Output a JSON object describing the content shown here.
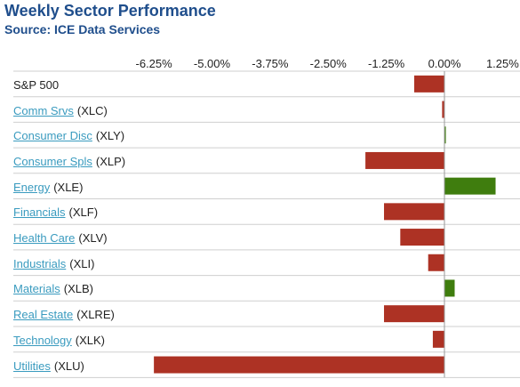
{
  "title": "Weekly Sector Performance",
  "subtitle": "Source: ICE Data Services",
  "chart_data": {
    "type": "bar",
    "orientation": "horizontal",
    "title": "Weekly Sector Performance",
    "xlim": [
      -6.95,
      1.45
    ],
    "ticks": [
      -6.25,
      -5.0,
      -3.75,
      -2.5,
      -1.25,
      0.0,
      1.25
    ],
    "tick_labels": [
      "-6.25%",
      "-5.00%",
      "-3.75%",
      "-2.50%",
      "-1.25%",
      "0.00%",
      "1.25%"
    ],
    "categories": [
      {
        "name": "S&P 500",
        "ticker": "",
        "linked": false
      },
      {
        "name": "Comm Srvs",
        "ticker": "(XLC)",
        "linked": true
      },
      {
        "name": "Consumer Disc",
        "ticker": "(XLY)",
        "linked": true
      },
      {
        "name": "Consumer Spls",
        "ticker": "(XLP)",
        "linked": true
      },
      {
        "name": "Energy",
        "ticker": "(XLE)",
        "linked": true
      },
      {
        "name": "Financials",
        "ticker": "(XLF)",
        "linked": true
      },
      {
        "name": "Health Care",
        "ticker": "(XLV)",
        "linked": true
      },
      {
        "name": "Industrials",
        "ticker": "(XLI)",
        "linked": true
      },
      {
        "name": "Materials",
        "ticker": "(XLB)",
        "linked": true
      },
      {
        "name": "Real Estate",
        "ticker": "(XLRE)",
        "linked": true
      },
      {
        "name": "Technology",
        "ticker": "(XLK)",
        "linked": true
      },
      {
        "name": "Utilities",
        "ticker": "(XLU)",
        "linked": true
      }
    ],
    "values": [
      -0.65,
      -0.05,
      0.03,
      -1.7,
      1.1,
      -1.3,
      -0.95,
      -0.35,
      0.22,
      -1.3,
      -0.25,
      -6.25
    ],
    "colors": {
      "positive": "#3f7d0e",
      "negative": "#ad3224",
      "axis": "#999999",
      "grid": "#cfcfcf"
    },
    "grid": "horizontal-separators",
    "legend": "none"
  }
}
